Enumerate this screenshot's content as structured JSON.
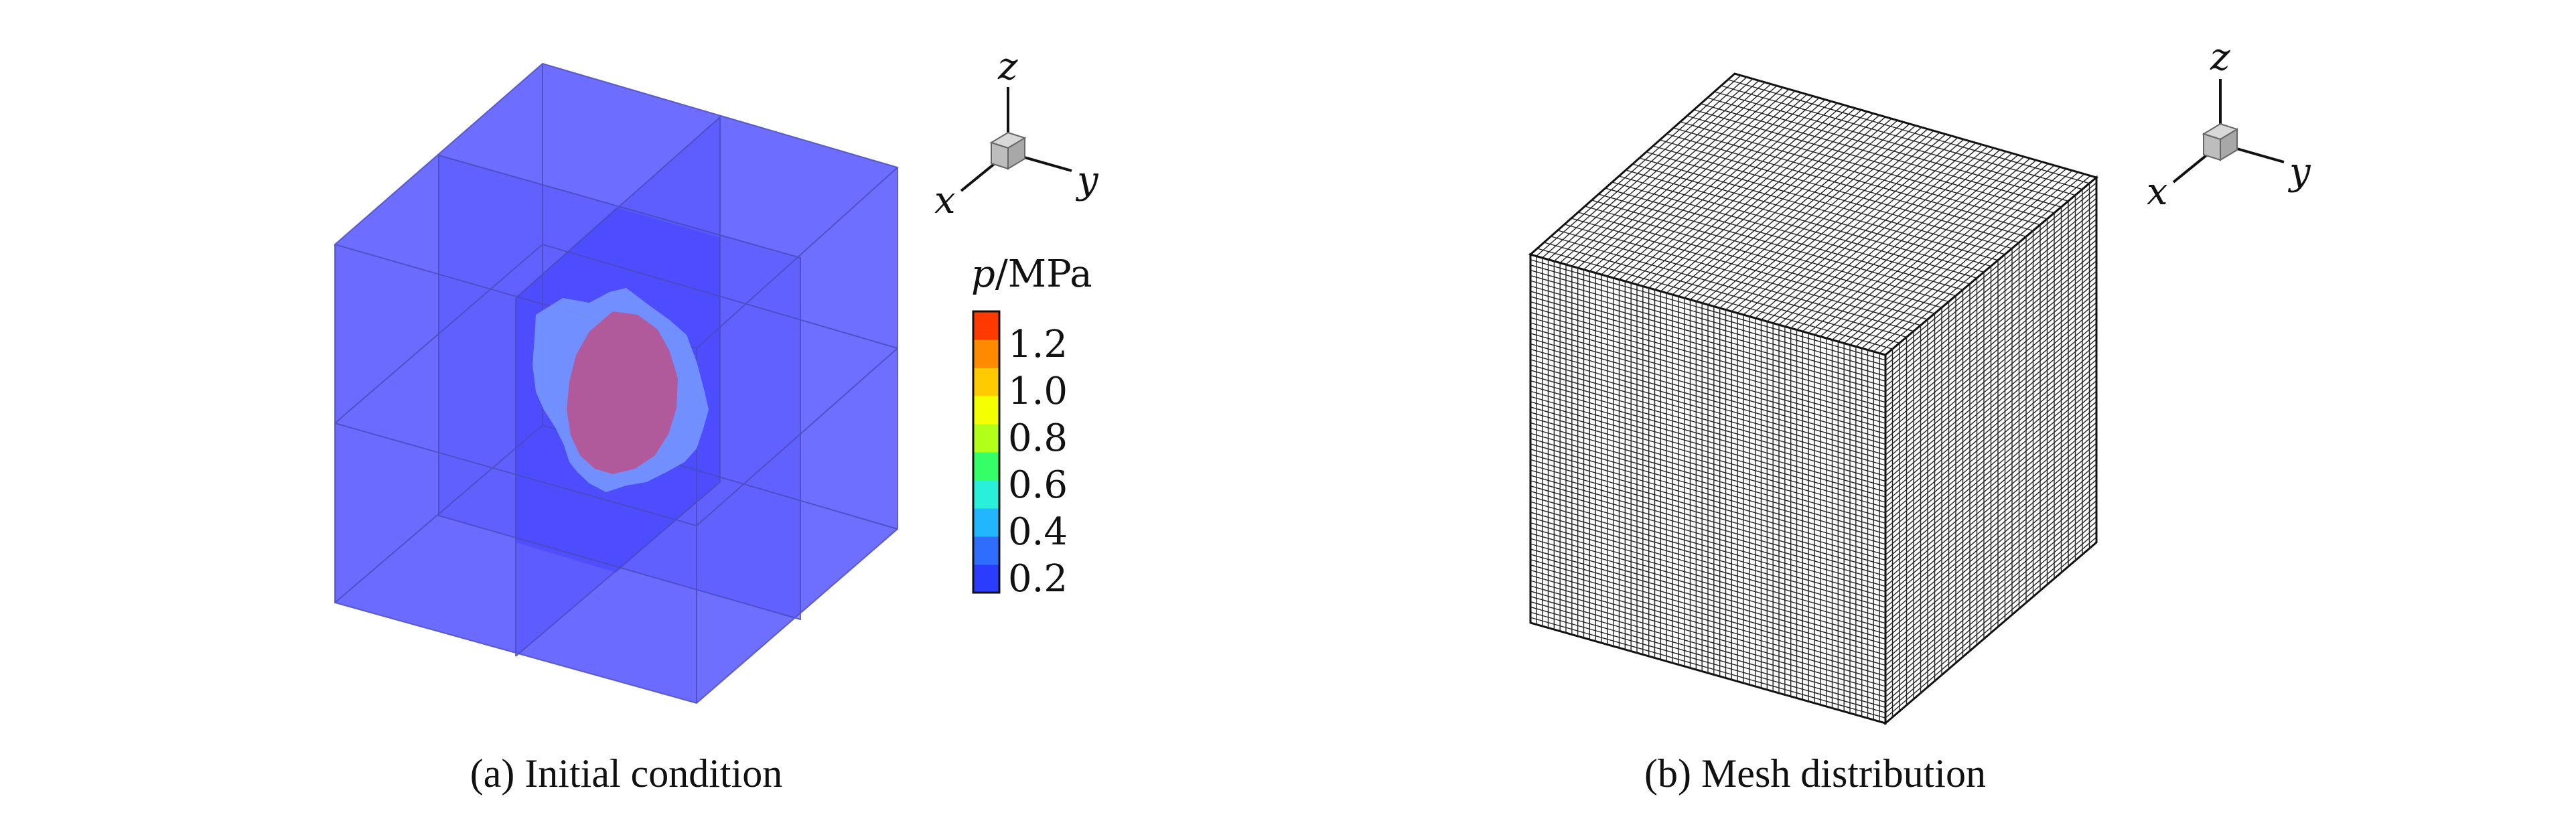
{
  "panel_a": {
    "caption": "(a) Initial condition",
    "axes": {
      "x": "x",
      "y": "y",
      "z": "z"
    },
    "colorbar": {
      "var": "p",
      "unit": "/MPa",
      "ticks": [
        "1.2",
        "1.0",
        "0.8",
        "0.6",
        "0.4",
        "0.2"
      ],
      "colors": [
        "#2b3cff",
        "#2f6dff",
        "#22b6ff",
        "#29f0d8",
        "#35ff66",
        "#b4ff1a",
        "#f4ff00",
        "#ffca00",
        "#ff8a00",
        "#ff3a00"
      ]
    },
    "colors": {
      "domain": "#6b6bff",
      "domain_core": "#4b4bff",
      "blob": "#b05a9a",
      "blob_halo": "#5aa7ff"
    }
  },
  "panel_b": {
    "caption": "(b) Mesh distribution",
    "axes": {
      "x": "x",
      "y": "y",
      "z": "z"
    },
    "mesh": {
      "front_cols": 60,
      "front_rows": 70,
      "right_cols": 30,
      "top_rows": 30
    }
  }
}
